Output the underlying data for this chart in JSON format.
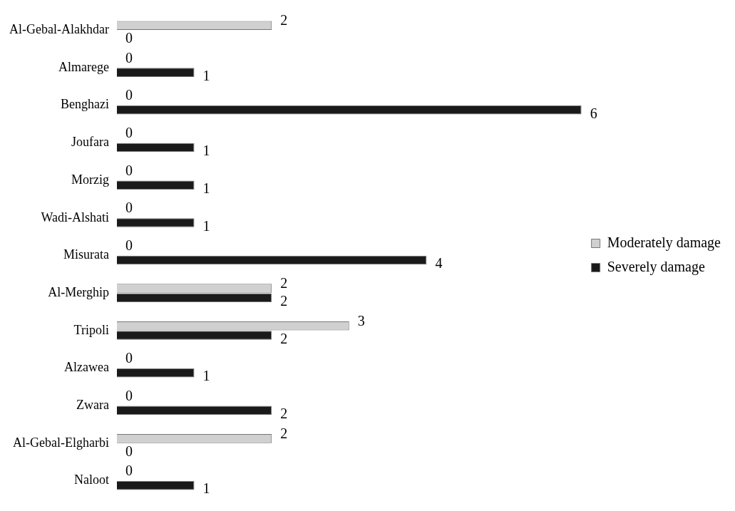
{
  "chart_data": {
    "type": "bar",
    "orientation": "horizontal",
    "categories": [
      "Al-Gebal-Alakhdar",
      "Almarege",
      "Benghazi",
      "Joufara",
      "Morzig",
      "Wadi-Alshati",
      "Misurata",
      "Al-Merghip",
      "Tripoli",
      "Alzawea",
      "Zwara",
      "Al-Gebal-Elgharbi",
      "Naloot"
    ],
    "series": [
      {
        "name": "Moderately damage",
        "color": "#d0d0d0",
        "values": [
          2,
          0,
          0,
          0,
          0,
          0,
          0,
          2,
          3,
          0,
          0,
          2,
          0
        ]
      },
      {
        "name": "Severely damage",
        "color": "#1a1a1a",
        "values": [
          0,
          1,
          6,
          1,
          1,
          1,
          4,
          2,
          2,
          1,
          2,
          0,
          1
        ]
      }
    ],
    "xlim": [
      0,
      6
    ],
    "tick_labels": "y",
    "legend": "right",
    "data_labels": true
  }
}
